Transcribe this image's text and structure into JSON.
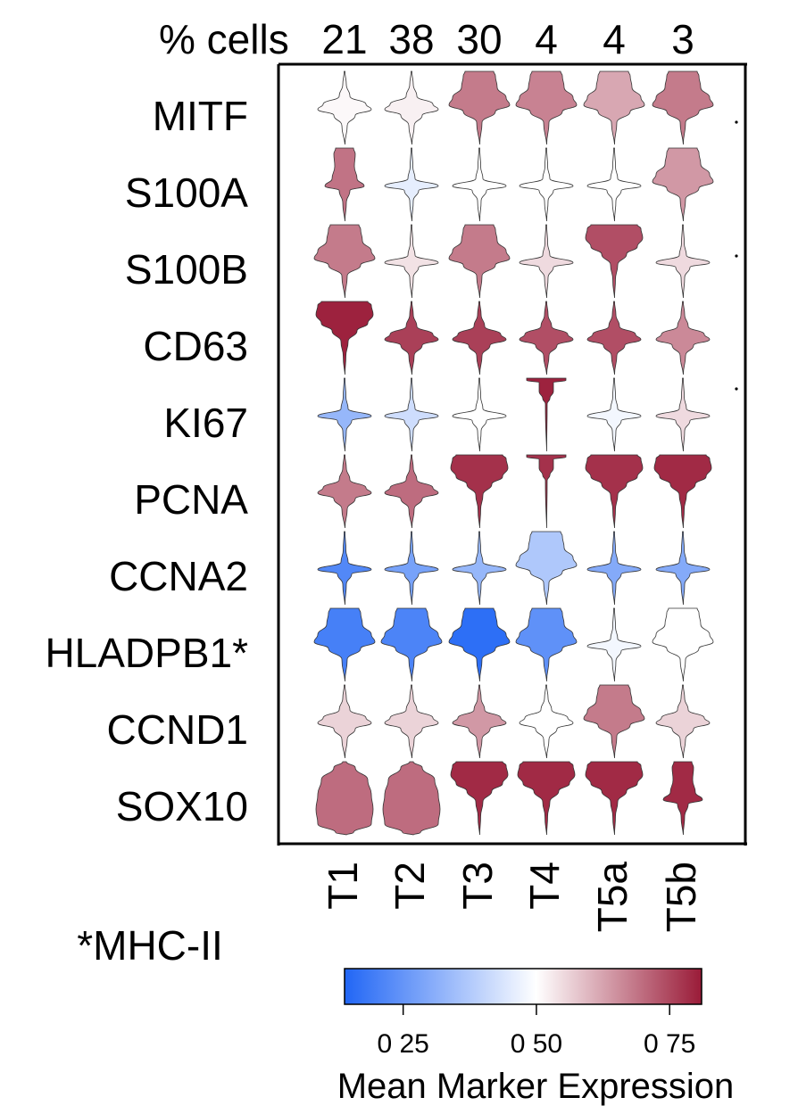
{
  "chart_data": {
    "type": "violin",
    "title": "",
    "pct_cells_label": "% cells",
    "pct_cells": [
      "21",
      "38",
      "30",
      "4",
      "4",
      "3"
    ],
    "clusters": [
      "T1",
      "T2",
      "T3",
      "T4",
      "T5a",
      "T5b"
    ],
    "genes": [
      "MITF",
      "S100A",
      "S100B",
      "CD63",
      "KI67",
      "PCNA",
      "CCNA2",
      "HLADPB1*",
      "CCND1",
      "SOX10"
    ],
    "footnote": "*MHC-II",
    "mean_expression": [
      [
        0.51,
        0.52,
        0.68,
        0.67,
        0.62,
        0.68
      ],
      [
        0.69,
        0.46,
        0.5,
        0.5,
        0.5,
        0.64
      ],
      [
        0.68,
        0.54,
        0.68,
        0.55,
        0.74,
        0.55
      ],
      [
        0.8,
        0.76,
        0.76,
        0.74,
        0.74,
        0.66
      ],
      [
        0.33,
        0.42,
        0.5,
        0.8,
        0.48,
        0.55
      ],
      [
        0.68,
        0.7,
        0.78,
        0.78,
        0.78,
        0.79
      ],
      [
        0.22,
        0.28,
        0.33,
        0.37,
        0.3,
        0.3
      ],
      [
        0.2,
        0.21,
        0.16,
        0.24,
        0.48,
        0.5
      ],
      [
        0.56,
        0.56,
        0.64,
        0.5,
        0.68,
        0.56
      ],
      [
        0.7,
        0.7,
        0.79,
        0.79,
        0.79,
        0.79
      ]
    ],
    "colorbar": {
      "label": "Mean Marker Expression",
      "range": [
        0.14,
        0.81
      ],
      "ticks": [
        0.25,
        0.5,
        0.75
      ],
      "tick_labels": [
        "0 25",
        "0 50",
        "0 75"
      ],
      "colors": [
        "#2166f5",
        "#ffffff",
        "#9a1b38"
      ]
    },
    "shapes": [
      [
        "diamond",
        "diamond",
        "bell",
        "bell",
        "bell",
        "bell"
      ],
      [
        "column",
        "thin",
        "thin",
        "thin",
        "thin",
        "bell"
      ],
      [
        "bell",
        "thin",
        "bell",
        "thin",
        "bowl",
        "thin"
      ],
      [
        "bowl",
        "diamond",
        "diamond",
        "diamond",
        "diamond",
        "diamond"
      ],
      [
        "thin",
        "thin",
        "thin",
        "cup",
        "thin",
        "thin"
      ],
      [
        "diamond",
        "diamond",
        "bowl",
        "cup",
        "bowl",
        "bowl"
      ],
      [
        "thin",
        "thin",
        "thin",
        "bell",
        "thin",
        "thin"
      ],
      [
        "bell",
        "bell",
        "bell",
        "bell",
        "thin",
        "bell"
      ],
      [
        "diamond",
        "diamond",
        "diamond",
        "diamond",
        "bell",
        "diamond"
      ],
      [
        "blob",
        "blob",
        "bowl",
        "bowl",
        "bowl",
        "column"
      ]
    ]
  }
}
